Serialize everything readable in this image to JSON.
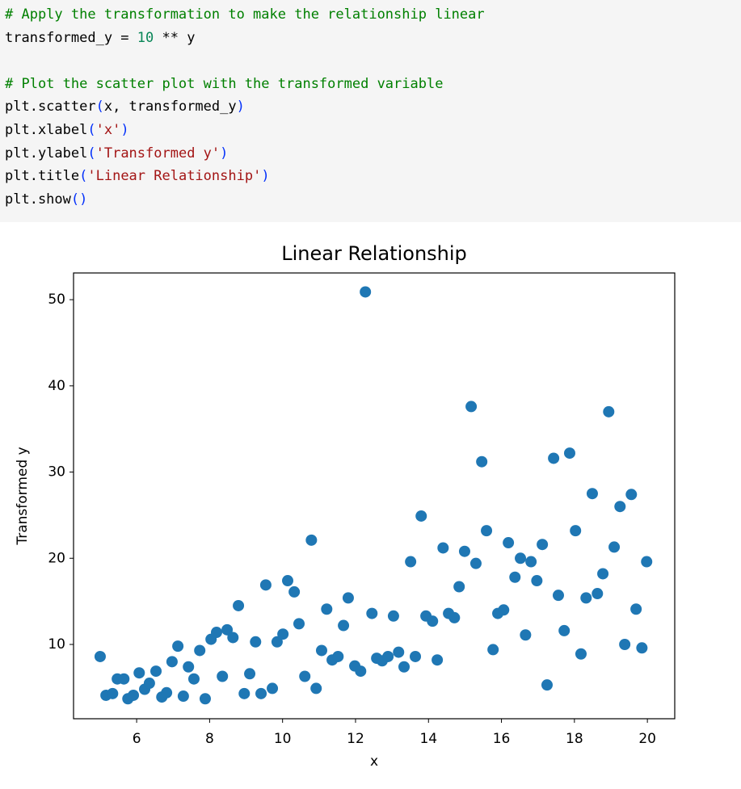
{
  "code": {
    "lines": [
      [
        {
          "text": "# Apply the transformation to make the relationship linear",
          "color": "#008000"
        }
      ],
      [
        {
          "text": "transformed_y = ",
          "color": "#000000"
        },
        {
          "text": "10",
          "color": "#098658"
        },
        {
          "text": " ** y",
          "color": "#000000"
        }
      ],
      [],
      [
        {
          "text": "# Plot the scatter plot with the transformed variable",
          "color": "#008000"
        }
      ],
      [
        {
          "text": "plt.scatter",
          "color": "#000000"
        },
        {
          "text": "(",
          "color": "#0431fa"
        },
        {
          "text": "x, transformed_y",
          "color": "#000000"
        },
        {
          "text": ")",
          "color": "#0431fa"
        }
      ],
      [
        {
          "text": "plt.xlabel",
          "color": "#000000"
        },
        {
          "text": "(",
          "color": "#0431fa"
        },
        {
          "text": "'x'",
          "color": "#a31515"
        },
        {
          "text": ")",
          "color": "#0431fa"
        }
      ],
      [
        {
          "text": "plt.ylabel",
          "color": "#000000"
        },
        {
          "text": "(",
          "color": "#0431fa"
        },
        {
          "text": "'Transformed y'",
          "color": "#a31515"
        },
        {
          "text": ")",
          "color": "#0431fa"
        }
      ],
      [
        {
          "text": "plt.title",
          "color": "#000000"
        },
        {
          "text": "(",
          "color": "#0431fa"
        },
        {
          "text": "'Linear Relationship'",
          "color": "#a31515"
        },
        {
          "text": ")",
          "color": "#0431fa"
        }
      ],
      [
        {
          "text": "plt.show",
          "color": "#000000"
        },
        {
          "text": "()",
          "color": "#0431fa"
        }
      ]
    ]
  },
  "chart_data": {
    "type": "scatter",
    "title": "Linear Relationship",
    "x_label": "x",
    "y_label": "Transformed y",
    "color": "#1f77b4",
    "xlim": [
      4.27,
      20.75
    ],
    "ylim": [
      1.38,
      53.1
    ],
    "xticks": [
      6,
      8,
      10,
      12,
      14,
      16,
      18,
      20
    ],
    "yticks": [
      10,
      20,
      30,
      40,
      50
    ],
    "x": [
      5.0,
      5.16,
      5.34,
      5.47,
      5.65,
      5.76,
      5.91,
      6.07,
      6.22,
      6.35,
      6.53,
      6.69,
      6.82,
      6.97,
      7.13,
      7.28,
      7.42,
      7.57,
      7.73,
      7.88,
      8.04,
      8.19,
      8.35,
      8.48,
      8.64,
      8.79,
      8.95,
      9.1,
      9.26,
      9.41,
      9.54,
      9.72,
      9.85,
      10.01,
      10.14,
      10.32,
      10.45,
      10.61,
      10.79,
      10.92,
      11.07,
      11.21,
      11.36,
      11.52,
      11.67,
      11.8,
      11.98,
      12.14,
      12.27,
      12.45,
      12.58,
      12.73,
      12.89,
      13.04,
      13.18,
      13.33,
      13.51,
      13.64,
      13.8,
      13.93,
      14.11,
      14.24,
      14.4,
      14.55,
      14.71,
      14.84,
      14.99,
      15.17,
      15.3,
      15.46,
      15.59,
      15.77,
      15.9,
      16.06,
      16.19,
      16.37,
      16.52,
      16.66,
      16.81,
      16.97,
      17.12,
      17.25,
      17.43,
      17.56,
      17.72,
      17.87,
      18.03,
      18.18,
      18.32,
      18.49,
      18.63,
      18.78,
      18.94,
      19.09,
      19.25,
      19.38,
      19.56,
      19.69,
      19.85,
      19.98
    ],
    "values": [
      8.6,
      4.1,
      4.3,
      6.0,
      6.0,
      3.7,
      4.1,
      6.7,
      4.8,
      5.5,
      6.9,
      3.9,
      4.4,
      8.0,
      9.8,
      4.0,
      7.4,
      6.0,
      9.3,
      3.7,
      10.6,
      11.4,
      6.3,
      11.7,
      10.8,
      14.5,
      4.3,
      6.6,
      10.3,
      4.3,
      16.9,
      4.9,
      10.3,
      11.2,
      17.4,
      16.1,
      12.4,
      6.3,
      22.1,
      4.9,
      9.3,
      14.1,
      8.2,
      8.6,
      12.2,
      15.4,
      7.5,
      6.9,
      50.9,
      13.6,
      8.4,
      8.1,
      8.6,
      13.3,
      9.1,
      7.4,
      19.6,
      8.6,
      24.9,
      13.3,
      12.7,
      8.2,
      21.2,
      13.6,
      13.1,
      16.7,
      20.8,
      37.6,
      19.4,
      31.2,
      23.2,
      9.4,
      13.6,
      14.0,
      21.8,
      17.8,
      20.0,
      11.1,
      19.6,
      17.4,
      21.6,
      5.3,
      31.6,
      15.7,
      11.6,
      32.2,
      23.2,
      8.9,
      15.4,
      27.5,
      15.9,
      18.2,
      37.0,
      21.3,
      26.0,
      10.0,
      27.4,
      14.1,
      9.6,
      19.6
    ]
  }
}
